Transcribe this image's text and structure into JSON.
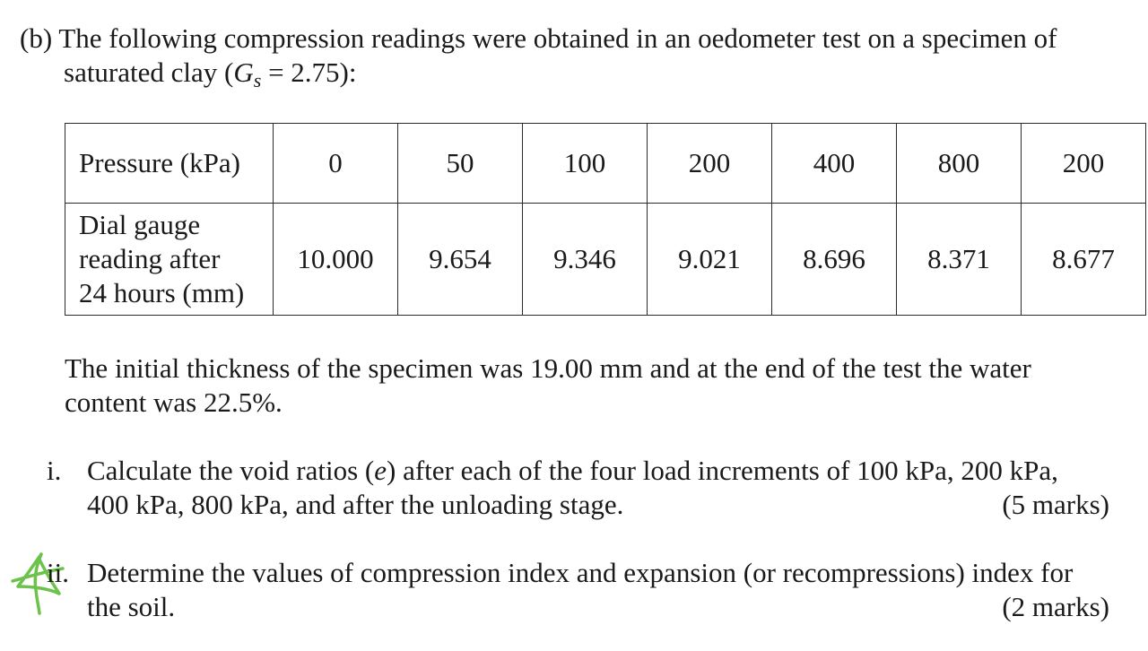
{
  "intro": {
    "label": "(b)",
    "text_part1": "The following compression readings were obtained in an oedometer test on a specimen of",
    "text_part2": "saturated clay (",
    "gs_symbol": "G",
    "gs_sub": "s",
    "gs_value": " = 2.75):"
  },
  "table": {
    "row1_header": "Pressure (kPa)",
    "pressures": [
      "0",
      "50",
      "100",
      "200",
      "400",
      "800",
      "200"
    ],
    "row2_header_lines": [
      "Dial gauge",
      "reading after",
      "24 hours (mm)"
    ],
    "readings": [
      "10.000",
      "9.654",
      "9.346",
      "9.021",
      "8.696",
      "8.371",
      "8.677"
    ]
  },
  "paragraph": {
    "line1": "The initial thickness of the specimen was 19.00 mm and at the end of the test the water",
    "line2": "content was 22.5%."
  },
  "questions": [
    {
      "number": "i.",
      "line1_a": "Calculate the void ratios (",
      "line1_sym": "e",
      "line1_b": ") after each of the four load increments of 100 kPa, 200 kPa,",
      "line2": "400 kPa, 800 kPa, and after the unloading stage.",
      "marks": "(5 marks)"
    },
    {
      "number": "ii.",
      "line1": "Determine the values of compression index and expansion (or recompressions) index for",
      "line2": "the soil.",
      "marks": "(2 marks)"
    }
  ],
  "annotation": {
    "icon": "green-handwritten-star-icon",
    "color": "#6cc24a"
  }
}
